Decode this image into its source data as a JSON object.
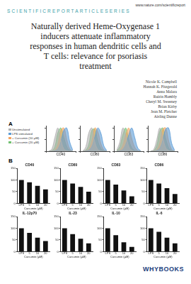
{
  "header": {
    "url": "www.nature.com/scientificreport",
    "series": "SCIENTIFICREPORTARTICLESERIES"
  },
  "title": "Naturally derived Heme-Oxygenase 1 inducers attenuate inflammatory responses in human dendritic cells and T cells: relevance for psoriasis treatment",
  "authors": [
    "Nicole K. Campbell",
    "Hannah K. Fitzgerald",
    "Anna Malara",
    "Ruirin Hambly",
    "Cheryl M. Sweeney",
    "Brian Kirby",
    "Jean M. Fletcher",
    "Aisling Dunne"
  ],
  "panel_labels": [
    "A",
    "B"
  ],
  "publisher": "WHYBOOKS",
  "chart_data": [
    {
      "type": "line",
      "x_label": "CD40",
      "x": [
        1,
        2,
        3,
        4,
        5,
        6,
        7,
        8,
        9
      ],
      "xlim": [
        0,
        10
      ],
      "xticks": [
        0,
        5,
        10
      ],
      "ylim": [
        0,
        110
      ],
      "yticks": [
        0,
        50,
        100
      ],
      "grid": false,
      "tick_labels": false,
      "legend": "left",
      "series": [
        {
          "name": "Unstimulated",
          "color": "#b0b0b0",
          "values": [
            0,
            10,
            60,
            100,
            50,
            10,
            2,
            0,
            0
          ]
        },
        {
          "name": "LPS stimulated",
          "color": "#5b9bd5",
          "values": [
            0,
            0,
            2,
            10,
            40,
            90,
            100,
            40,
            5
          ]
        },
        {
          "name": "+ Curcumin (10 μM)",
          "color": "#f4a460",
          "values": [
            0,
            0,
            5,
            30,
            90,
            100,
            50,
            10,
            0
          ]
        },
        {
          "name": "+ Curcumin (20 μM)",
          "color": "#70c070",
          "values": [
            0,
            2,
            20,
            80,
            100,
            60,
            20,
            3,
            0
          ]
        }
      ]
    },
    {
      "type": "line",
      "x_label": "CD80",
      "x": [
        1,
        2,
        3,
        4,
        5,
        6,
        7,
        8,
        9
      ],
      "xlim": [
        0,
        10
      ],
      "xticks": [
        0,
        5,
        10
      ],
      "ylim": [
        0,
        110
      ],
      "yticks": [
        0,
        50,
        100
      ],
      "grid": false,
      "tick_labels": false,
      "series": [
        {
          "name": "Unstimulated",
          "color": "#b0b0b0",
          "values": [
            0,
            20,
            80,
            100,
            40,
            8,
            1,
            0,
            0
          ]
        },
        {
          "name": "LPS stimulated",
          "color": "#5b9bd5",
          "values": [
            0,
            1,
            5,
            20,
            60,
            100,
            80,
            25,
            3
          ]
        },
        {
          "name": "+ Curcumin (10 μM)",
          "color": "#f4a460",
          "values": [
            0,
            2,
            10,
            45,
            100,
            85,
            35,
            6,
            0
          ]
        },
        {
          "name": "+ Curcumin (20 μM)",
          "color": "#70c070",
          "values": [
            0,
            5,
            30,
            90,
            95,
            45,
            12,
            2,
            0
          ]
        }
      ]
    },
    {
      "type": "line",
      "x_label": "CD83",
      "x": [
        1,
        2,
        3,
        4,
        5,
        6,
        7,
        8,
        9
      ],
      "xlim": [
        0,
        10
      ],
      "xticks": [
        0,
        5,
        10
      ],
      "ylim": [
        0,
        110
      ],
      "yticks": [
        0,
        50,
        100
      ],
      "grid": false,
      "tick_labels": false,
      "series": [
        {
          "name": "Unstimulated",
          "color": "#b0b0b0",
          "values": [
            5,
            40,
            100,
            70,
            20,
            4,
            0,
            0,
            0
          ]
        },
        {
          "name": "LPS stimulated",
          "color": "#5b9bd5",
          "values": [
            0,
            2,
            8,
            30,
            70,
            100,
            60,
            15,
            2
          ]
        },
        {
          "name": "+ Curcumin (10 μM)",
          "color": "#f4a460",
          "values": [
            0,
            5,
            25,
            70,
            100,
            55,
            18,
            3,
            0
          ]
        },
        {
          "name": "+ Curcumin (20 μM)",
          "color": "#70c070",
          "values": [
            2,
            20,
            70,
            100,
            50,
            15,
            3,
            0,
            0
          ]
        }
      ]
    },
    {
      "type": "line",
      "x_label": "CD86",
      "x": [
        1,
        2,
        3,
        4,
        5,
        6,
        7,
        8,
        9
      ],
      "xlim": [
        0,
        10
      ],
      "xticks": [
        0,
        5,
        10
      ],
      "ylim": [
        0,
        110
      ],
      "yticks": [
        0,
        50,
        100
      ],
      "grid": false,
      "tick_labels": false,
      "series": [
        {
          "name": "Unstimulated",
          "color": "#b0b0b0",
          "values": [
            0,
            8,
            50,
            100,
            60,
            15,
            3,
            0,
            0
          ]
        },
        {
          "name": "LPS stimulated",
          "color": "#5b9bd5",
          "values": [
            0,
            0,
            3,
            12,
            45,
            95,
            100,
            35,
            4
          ]
        },
        {
          "name": "+ Curcumin (10 μM)",
          "color": "#f4a460",
          "values": [
            0,
            1,
            6,
            35,
            95,
            100,
            45,
            8,
            0
          ]
        },
        {
          "name": "+ Curcumin (20 μM)",
          "color": "#70c070",
          "values": [
            0,
            3,
            25,
            85,
            100,
            55,
            15,
            2,
            0
          ]
        }
      ]
    },
    {
      "type": "bar",
      "title": "CD40",
      "x_label": "Curcumin (μM)",
      "categories": [
        "LPS",
        "5",
        "10",
        "20"
      ],
      "values": [
        100,
        90,
        75,
        60
      ],
      "color": "#111111",
      "ylim": [
        0,
        150
      ],
      "yticks": [
        0,
        50,
        100,
        150
      ],
      "grid": false
    },
    {
      "type": "bar",
      "title": "CD80",
      "x_label": "Curcumin (μM)",
      "categories": [
        "LPS",
        "5",
        "10",
        "20"
      ],
      "values": [
        100,
        85,
        70,
        50
      ],
      "color": "#111111",
      "ylim": [
        0,
        150
      ],
      "yticks": [
        0,
        50,
        100,
        150
      ],
      "grid": false
    },
    {
      "type": "bar",
      "title": "CD83",
      "x_label": "Curcumin (μM)",
      "categories": [
        "LPS",
        "5",
        "10",
        "20"
      ],
      "values": [
        100,
        80,
        55,
        30
      ],
      "color": "#111111",
      "ylim": [
        0,
        150
      ],
      "yticks": [
        0,
        50,
        100,
        150
      ],
      "grid": false
    },
    {
      "type": "bar",
      "title": "CD86",
      "x_label": "Curcumin (μM)",
      "categories": [
        "LPS",
        "5",
        "10",
        "20"
      ],
      "values": [
        100,
        85,
        65,
        40
      ],
      "color": "#111111",
      "ylim": [
        0,
        150
      ],
      "yticks": [
        0,
        50,
        100,
        150
      ],
      "grid": false
    },
    {
      "type": "bar",
      "title": "IL-12p70",
      "x_label": "Curcumin (μM)",
      "categories": [
        "LPS",
        "5",
        "10",
        "20"
      ],
      "values": [
        100,
        80,
        60,
        45
      ],
      "color": "#111111",
      "ylim": [
        0,
        150
      ],
      "yticks": [
        0,
        50,
        100,
        150
      ],
      "grid": false
    },
    {
      "type": "bar",
      "title": "IL-23",
      "x_label": "Curcumin (μM)",
      "categories": [
        "LPS",
        "5",
        "10",
        "20"
      ],
      "values": [
        100,
        75,
        55,
        35
      ],
      "color": "#111111",
      "ylim": [
        0,
        150
      ],
      "yticks": [
        0,
        50,
        100,
        150
      ],
      "grid": false
    },
    {
      "type": "bar",
      "title": "IL-10",
      "x_label": "Curcumin (μM)",
      "categories": [
        "LPS",
        "5",
        "10",
        "20"
      ],
      "values": [
        100,
        70,
        40,
        20
      ],
      "color": "#111111",
      "ylim": [
        0,
        150
      ],
      "yticks": [
        0,
        50,
        100,
        150
      ],
      "grid": false
    },
    {
      "type": "bar",
      "title": "IL-6",
      "x_label": "Curcumin (μM)",
      "categories": [
        "LPS",
        "5",
        "10",
        "20"
      ],
      "values": [
        100,
        85,
        60,
        35
      ],
      "color": "#111111",
      "ylim": [
        0,
        150
      ],
      "yticks": [
        0,
        50,
        100,
        150
      ],
      "grid": false
    }
  ]
}
